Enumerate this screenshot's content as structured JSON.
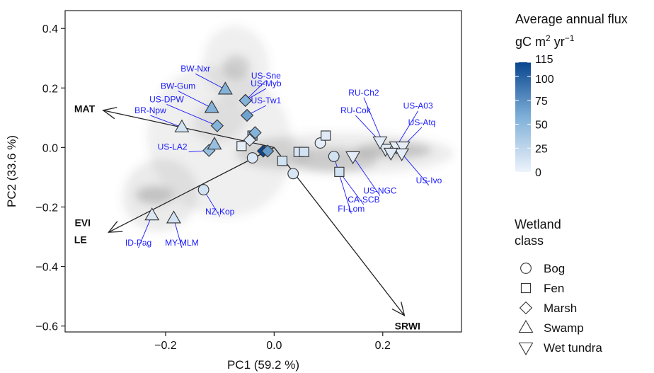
{
  "chart_data": {
    "type": "scatter",
    "title": "",
    "xlabel": "PC1 (59.2 %)",
    "ylabel": "PC2 (33.6 %)",
    "xlim": [
      -0.385,
      0.345
    ],
    "ylim": [
      -0.62,
      0.46
    ],
    "xticks": [
      -0.2,
      0.0,
      0.2
    ],
    "xtick_labels": [
      "−0.2",
      "0.0",
      "0.2"
    ],
    "yticks": [
      0.4,
      0.2,
      0.0,
      -0.2,
      -0.4,
      -0.6
    ],
    "ytick_labels": [
      "0.4",
      "0.2",
      "0.0",
      "−0.2",
      "−0.4",
      "−0.6"
    ],
    "grid": false,
    "density_background": [
      {
        "cx": -0.1,
        "cy": 0.02,
        "rx": 0.13,
        "ry": 0.26,
        "rot": -32,
        "alpha": 0.1
      },
      {
        "cx": -0.21,
        "cy": -0.16,
        "rx": 0.07,
        "ry": 0.12,
        "rot": -30,
        "alpha": 0.13
      },
      {
        "cx": -0.22,
        "cy": -0.16,
        "rx": 0.035,
        "ry": 0.03,
        "rot": 0,
        "alpha": 0.3
      },
      {
        "cx": -0.07,
        "cy": 0.28,
        "rx": 0.06,
        "ry": 0.13,
        "rot": -10,
        "alpha": 0.1
      },
      {
        "cx": -0.07,
        "cy": 0.27,
        "rx": 0.025,
        "ry": 0.04,
        "rot": 0,
        "alpha": 0.22
      },
      {
        "cx": -0.1,
        "cy": 0.09,
        "rx": 0.05,
        "ry": 0.07,
        "rot": -20,
        "alpha": 0.12
      },
      {
        "cx": 0.13,
        "cy": -0.02,
        "rx": 0.2,
        "ry": 0.07,
        "rot": 0,
        "alpha": 0.12
      },
      {
        "cx": 0.11,
        "cy": -0.04,
        "rx": 0.08,
        "ry": 0.04,
        "rot": 0,
        "alpha": 0.25
      },
      {
        "cx": 0.22,
        "cy": -0.01,
        "rx": 0.07,
        "ry": 0.025,
        "rot": 0,
        "alpha": 0.3
      },
      {
        "cx": 0.0,
        "cy": -0.02,
        "rx": 0.07,
        "ry": 0.05,
        "rot": 0,
        "alpha": 0.1
      }
    ],
    "loadings": [
      {
        "name": "MAT",
        "x": -0.315,
        "y": 0.125,
        "label_x": -0.33,
        "label_y": 0.13,
        "anchor": "end"
      },
      {
        "name": "EVI",
        "x": -0.305,
        "y": -0.285,
        "label_x": -0.338,
        "label_y": -0.253,
        "anchor": "end"
      },
      {
        "name": "LE",
        "x": -0.305,
        "y": -0.285,
        "label_x": -0.345,
        "label_y": -0.31,
        "anchor": "end"
      },
      {
        "name": "SRWI",
        "x": 0.24,
        "y": -0.565,
        "label_x": 0.222,
        "label_y": -0.6,
        "anchor": "start"
      }
    ],
    "points": [
      {
        "site": "",
        "class": "Bog",
        "x": -0.04,
        "y": -0.035,
        "flux": 10
      },
      {
        "site": "NZ-Kop",
        "class": "Bog",
        "x": -0.13,
        "y": -0.142,
        "flux": 15
      },
      {
        "site": "",
        "class": "Bog",
        "x": 0.035,
        "y": -0.088,
        "flux": 12
      },
      {
        "site": "",
        "class": "Bog",
        "x": 0.085,
        "y": 0.015,
        "flux": 5
      },
      {
        "site": "FI-Lom",
        "class": "Bog",
        "x": 0.11,
        "y": -0.03,
        "flux": 15
      },
      {
        "site": "",
        "class": "Fen",
        "x": -0.06,
        "y": 0.005,
        "flux": 5
      },
      {
        "site": "",
        "class": "Fen",
        "x": -0.04,
        "y": 0.04,
        "flux": 45
      },
      {
        "site": "",
        "class": "Fen",
        "x": 0.015,
        "y": -0.045,
        "flux": 15
      },
      {
        "site": "",
        "class": "Fen",
        "x": 0.045,
        "y": -0.015,
        "flux": 12
      },
      {
        "site": "",
        "class": "Fen",
        "x": 0.055,
        "y": -0.015,
        "flux": 15
      },
      {
        "site": "",
        "class": "Fen",
        "x": 0.095,
        "y": 0.04,
        "flux": 8
      },
      {
        "site": "CA-SCB",
        "class": "Fen",
        "x": 0.12,
        "y": -0.082,
        "flux": 15
      },
      {
        "site": "US-Sne",
        "class": "Marsh",
        "x": -0.053,
        "y": 0.158,
        "flux": 55
      },
      {
        "site": "US-Myb",
        "class": "Marsh",
        "x": -0.053,
        "y": 0.158,
        "flux": 55
      },
      {
        "site": "US-Tw1",
        "class": "Marsh",
        "x": -0.05,
        "y": 0.108,
        "flux": 65
      },
      {
        "site": "US-DPW",
        "class": "Marsh",
        "x": -0.105,
        "y": 0.073,
        "flux": 55
      },
      {
        "site": "US-LA2",
        "class": "Marsh",
        "x": -0.12,
        "y": -0.01,
        "flux": 45
      },
      {
        "site": "",
        "class": "Marsh",
        "x": -0.035,
        "y": 0.05,
        "flux": 55
      },
      {
        "site": "",
        "class": "Marsh",
        "x": -0.045,
        "y": 0.025,
        "flux": 8
      },
      {
        "site": "",
        "class": "Marsh",
        "x": -0.02,
        "y": -0.012,
        "flux": 115
      },
      {
        "site": "",
        "class": "Marsh",
        "x": -0.012,
        "y": -0.012,
        "flux": 70
      },
      {
        "site": "BW-Nxr",
        "class": "Swamp",
        "x": -0.09,
        "y": 0.195,
        "flux": 55
      },
      {
        "site": "BW-Gum",
        "class": "Swamp",
        "x": -0.115,
        "y": 0.133,
        "flux": 55
      },
      {
        "site": "BR-Npw",
        "class": "Swamp",
        "x": -0.17,
        "y": 0.068,
        "flux": 15
      },
      {
        "site": "",
        "class": "Swamp",
        "x": -0.11,
        "y": 0.01,
        "flux": 45
      },
      {
        "site": "ID-Pag",
        "class": "Swamp",
        "x": -0.225,
        "y": -0.228,
        "flux": 10
      },
      {
        "site": "MY-MLM",
        "class": "Swamp",
        "x": -0.185,
        "y": -0.238,
        "flux": 15
      },
      {
        "site": "US-NGC",
        "class": "Wet tundra",
        "x": 0.145,
        "y": -0.03,
        "flux": 5
      },
      {
        "site": "RU-Ch2",
        "class": "Wet tundra",
        "x": 0.205,
        "y": -0.005,
        "flux": 8
      },
      {
        "site": "RU-Cok",
        "class": "Wet tundra",
        "x": 0.195,
        "y": 0.02,
        "flux": 5
      },
      {
        "site": "US-A03",
        "class": "Wet tundra",
        "x": 0.225,
        "y": 0.003,
        "flux": 5
      },
      {
        "site": "US-Atq",
        "class": "Wet tundra",
        "x": 0.237,
        "y": 0.003,
        "flux": 5
      },
      {
        "site": "US-Ivo",
        "class": "Wet tundra",
        "x": 0.235,
        "y": -0.02,
        "flux": 5
      },
      {
        "site": "",
        "class": "Wet tundra",
        "x": 0.215,
        "y": -0.018,
        "flux": 8
      }
    ],
    "site_labels": [
      {
        "text": "BW-Nxr",
        "lx": -0.145,
        "ly": 0.255,
        "px": -0.09,
        "py": 0.195,
        "anchor": "middle"
      },
      {
        "text": "US-Sne",
        "lx": -0.015,
        "ly": 0.232,
        "px": -0.053,
        "py": 0.158,
        "anchor": "middle"
      },
      {
        "text": "US-Myb",
        "lx": -0.015,
        "ly": 0.205,
        "px": -0.053,
        "py": 0.158,
        "anchor": "middle"
      },
      {
        "text": "BW-Gum",
        "lx": -0.177,
        "ly": 0.197,
        "px": -0.115,
        "py": 0.133,
        "anchor": "middle"
      },
      {
        "text": "US-Tw1",
        "lx": -0.015,
        "ly": 0.148,
        "px": -0.05,
        "py": 0.108,
        "anchor": "middle"
      },
      {
        "text": "US-DPW",
        "lx": -0.198,
        "ly": 0.152,
        "px": -0.105,
        "py": 0.073,
        "anchor": "middle"
      },
      {
        "text": "BR-Npw",
        "lx": -0.228,
        "ly": 0.115,
        "px": -0.17,
        "py": 0.068,
        "anchor": "middle"
      },
      {
        "text": "US-LA2",
        "lx": -0.16,
        "ly": -0.008,
        "px": -0.12,
        "py": -0.01,
        "anchor": "end"
      },
      {
        "text": "NZ-Kop",
        "lx": -0.1,
        "ly": -0.225,
        "px": -0.13,
        "py": -0.142,
        "anchor": "middle"
      },
      {
        "text": "ID-Pag",
        "lx": -0.25,
        "ly": -0.33,
        "px": -0.225,
        "py": -0.228,
        "anchor": "middle"
      },
      {
        "text": "MY-MLM",
        "lx": -0.17,
        "ly": -0.33,
        "px": -0.185,
        "py": -0.238,
        "anchor": "middle"
      },
      {
        "text": "RU-Ch2",
        "lx": 0.165,
        "ly": 0.175,
        "px": 0.205,
        "py": -0.005,
        "anchor": "middle"
      },
      {
        "text": "RU-Cok",
        "lx": 0.15,
        "ly": 0.115,
        "px": 0.195,
        "py": 0.02,
        "anchor": "middle"
      },
      {
        "text": "US-A03",
        "lx": 0.265,
        "ly": 0.13,
        "px": 0.225,
        "py": 0.003,
        "anchor": "middle"
      },
      {
        "text": "US-Atq",
        "lx": 0.272,
        "ly": 0.075,
        "px": 0.237,
        "py": 0.003,
        "anchor": "middle"
      },
      {
        "text": "US-NGC",
        "lx": 0.195,
        "ly": -0.155,
        "px": 0.145,
        "py": -0.03,
        "anchor": "middle"
      },
      {
        "text": "CA-SCB",
        "lx": 0.165,
        "ly": -0.185,
        "px": 0.12,
        "py": -0.082,
        "anchor": "middle"
      },
      {
        "text": "FI-Lom",
        "lx": 0.142,
        "ly": -0.215,
        "px": 0.11,
        "py": -0.03,
        "anchor": "middle"
      },
      {
        "text": "US-Ivo",
        "lx": 0.285,
        "ly": -0.12,
        "px": 0.235,
        "py": -0.02,
        "anchor": "middle"
      }
    ],
    "colorbar": {
      "title_line1": "Average annual flux",
      "title_line2_base": "gC m",
      "title_line2_sup1": "2",
      "title_line2_mid": " yr",
      "title_line2_sup2": "−1",
      "min": 0,
      "max": 115,
      "ticks": [
        0,
        25,
        50,
        75,
        100,
        115
      ],
      "tick_labels": [
        "0",
        "25",
        "50",
        "75",
        "100",
        "115"
      ],
      "color_low": "#eef3fb",
      "color_high": "#08458f"
    },
    "shape_legend": {
      "title_line1": "Wetland",
      "title_line2": "class",
      "items": [
        {
          "label": "Bog",
          "shape": "circle"
        },
        {
          "label": "Fen",
          "shape": "square"
        },
        {
          "label": "Marsh",
          "shape": "diamond"
        },
        {
          "label": "Swamp",
          "shape": "triangle-up"
        },
        {
          "label": "Wet tundra",
          "shape": "triangle-down"
        }
      ]
    },
    "colors": {
      "site_label": "#1a1aff",
      "arrow": "#222222",
      "axis": "#222222",
      "density": "#666666"
    }
  }
}
